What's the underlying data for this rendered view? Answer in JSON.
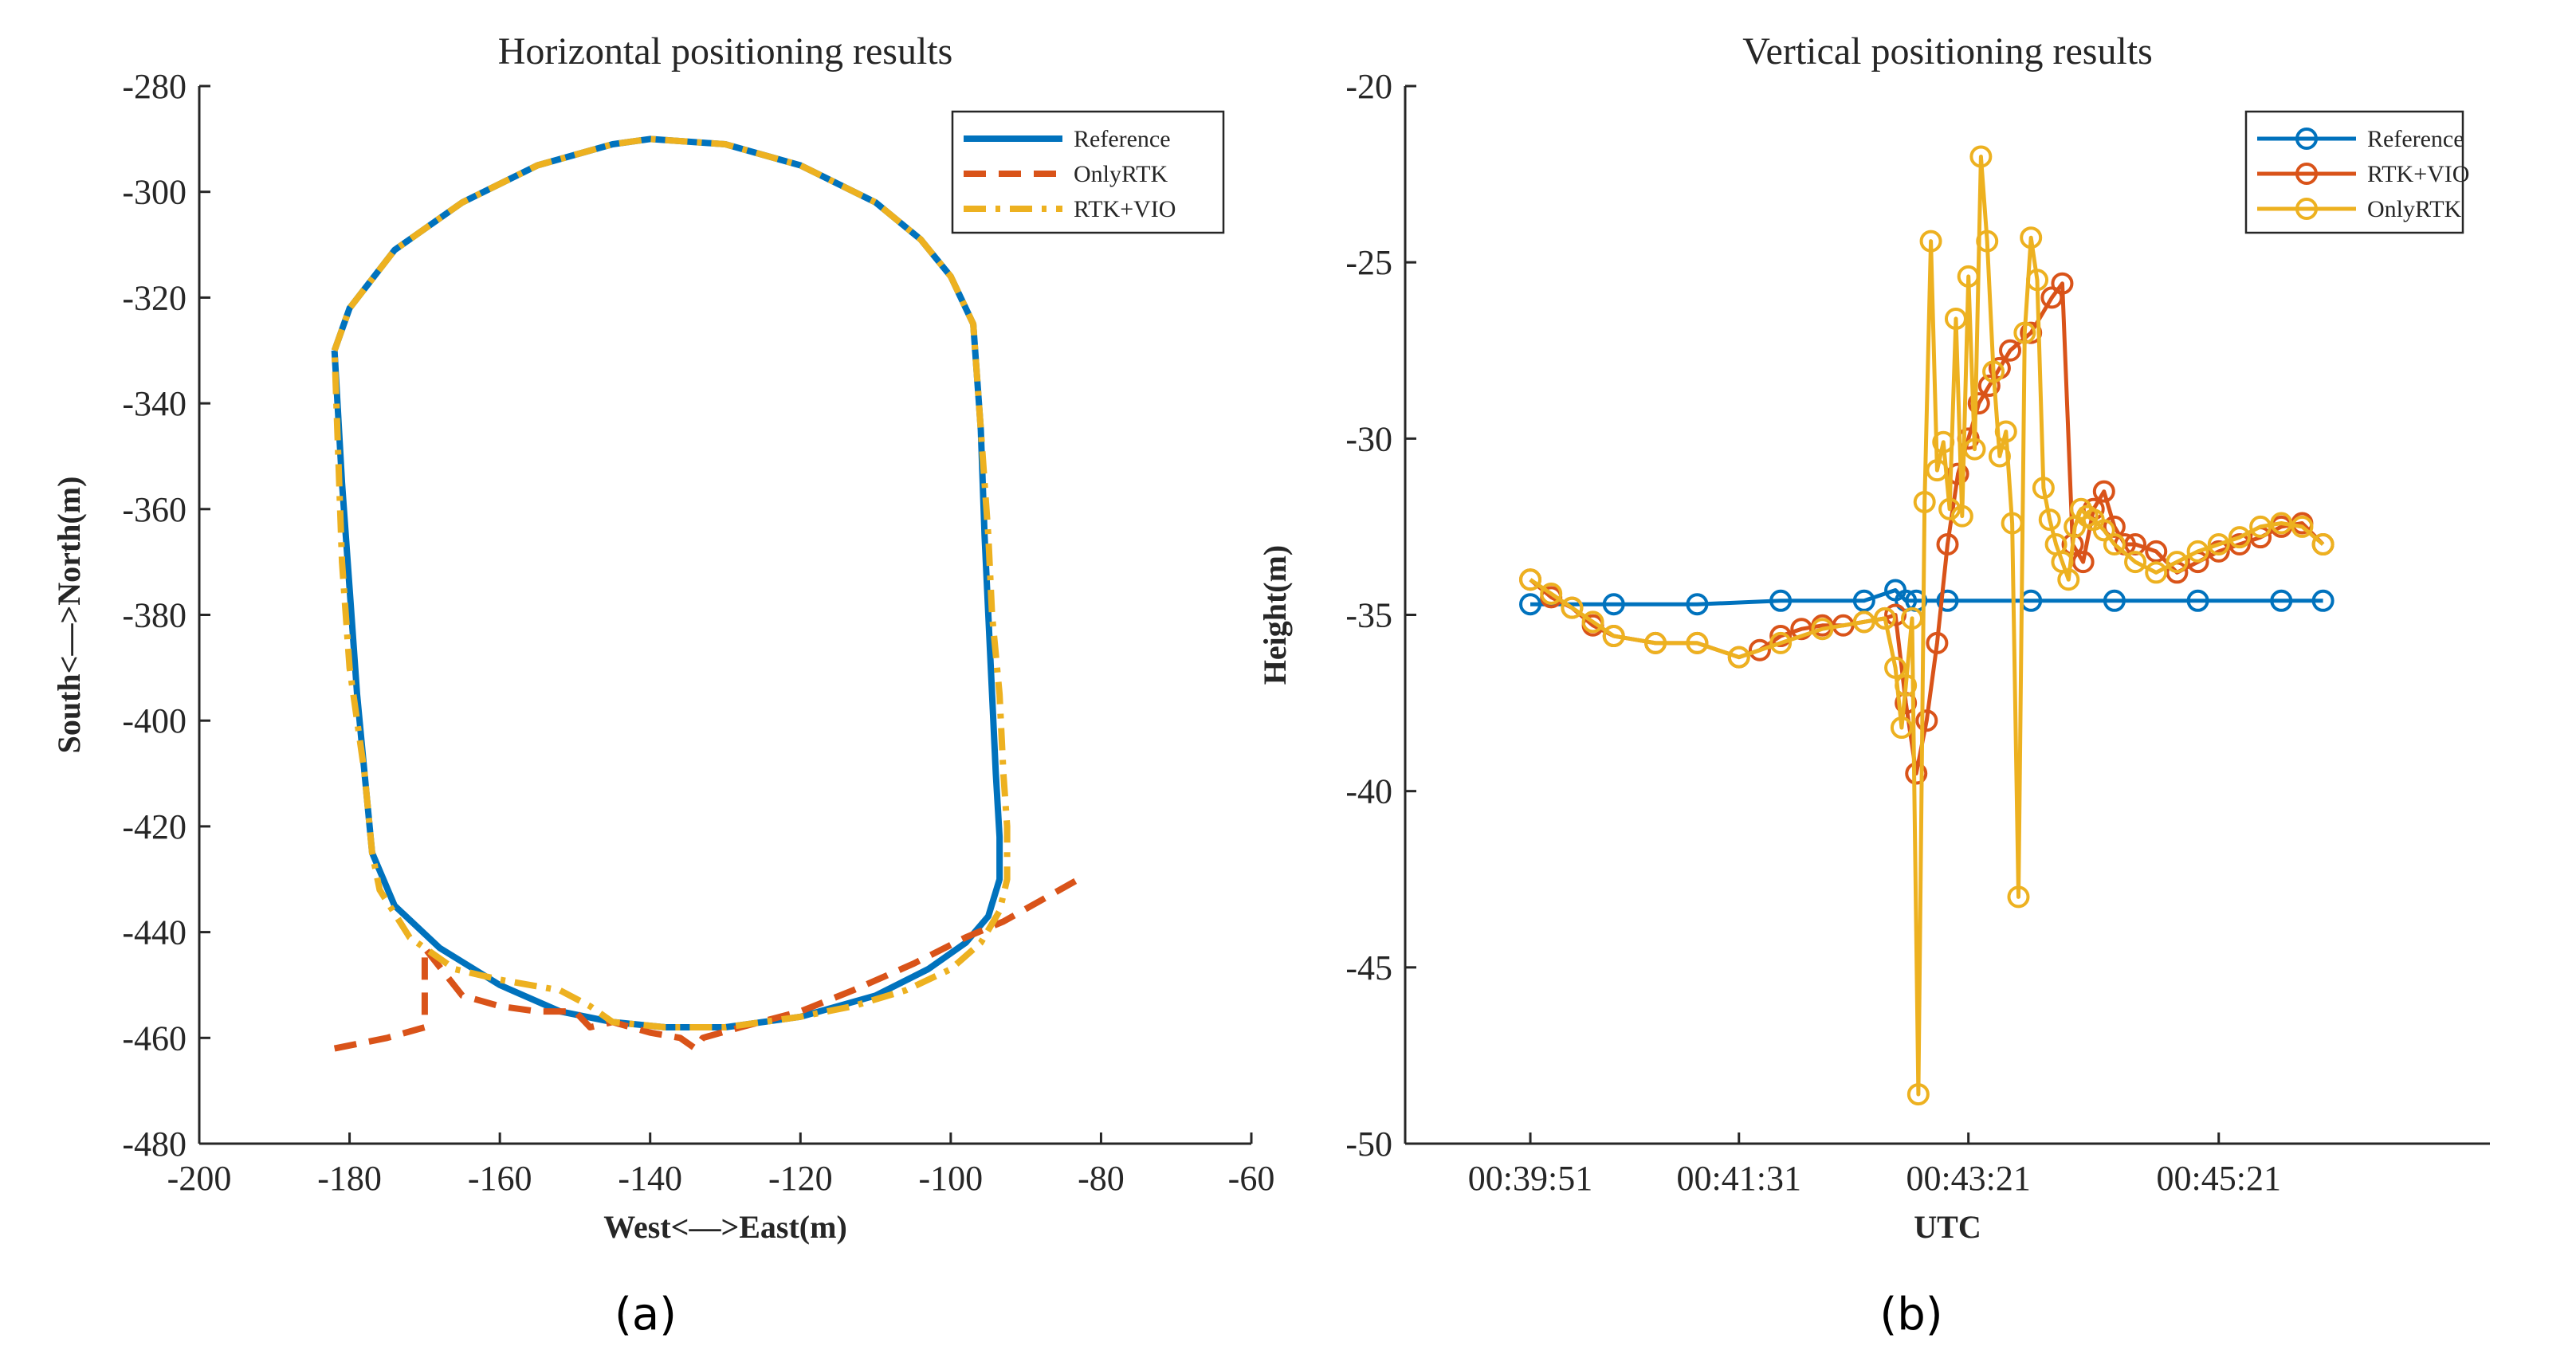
{
  "chart_data": [
    {
      "type": "line",
      "title": "Horizontal positioning results",
      "xlabel": "West<—>East(m)",
      "ylabel": "South<—>North(m)",
      "xlim": [
        -200,
        -60
      ],
      "ylim": [
        -480,
        -280
      ],
      "xticks": [
        "-200",
        "-180",
        "-160",
        "-140",
        "-120",
        "-100",
        "-80",
        "-60"
      ],
      "yticks": [
        "-280",
        "-300",
        "-320",
        "-340",
        "-360",
        "-380",
        "-400",
        "-420",
        "-440",
        "-460",
        "-480"
      ],
      "legend": {
        "position": "top-right",
        "entries": [
          "Reference",
          "OnlyRTK",
          "RTK+VIO"
        ]
      },
      "caption": "(a)",
      "series": [
        {
          "name": "Reference",
          "color": "#0072BD",
          "style": "solid",
          "x": [
            -182,
            -180,
            -174,
            -165,
            -155,
            -145,
            -140,
            -130,
            -120,
            -110,
            -104,
            -100,
            -97,
            -96,
            -95.5,
            -95,
            -94.5,
            -94,
            -93.5,
            -93.5,
            -95,
            -98,
            -103,
            -110,
            -120,
            -130,
            -138,
            -145,
            -152,
            -160,
            -168,
            -174,
            -177,
            -178,
            -179,
            -180,
            -181,
            -182
          ],
          "y": [
            -330,
            -322,
            -311,
            -302,
            -295,
            -291,
            -290,
            -291,
            -295,
            -302,
            -309,
            -316,
            -325,
            -345,
            -365,
            -380,
            -395,
            -410,
            -422,
            -430,
            -437,
            -442,
            -447,
            -452,
            -456,
            -458,
            -458,
            -457,
            -455,
            -450,
            -443,
            -435,
            -425,
            -410,
            -395,
            -375,
            -355,
            -330
          ]
        },
        {
          "name": "OnlyRTK",
          "color": "#D95319",
          "style": "dashed",
          "x": [
            -182,
            -175,
            -170,
            -170,
            -165,
            -160,
            -155,
            -150,
            -148,
            -145,
            -140,
            -136,
            -134,
            -133,
            -128,
            -120,
            -113,
            -105,
            -98,
            -93,
            -88,
            -83
          ],
          "y": [
            -462,
            -460,
            -458,
            -443,
            -452,
            -454,
            -455,
            -455,
            -458,
            -457,
            -459,
            -460,
            -462,
            -460,
            -458,
            -455,
            -451,
            -446,
            -441,
            -438,
            -434,
            -430
          ]
        },
        {
          "name": "RTK+VIO",
          "color": "#EDB120",
          "style": "dashdot",
          "x": [
            -182,
            -180,
            -174,
            -165,
            -155,
            -145,
            -140,
            -130,
            -120,
            -110,
            -104,
            -100,
            -97,
            -96,
            -95,
            -94.5,
            -93.5,
            -93,
            -92.5,
            -92.5,
            -93.5,
            -96,
            -100,
            -106,
            -113,
            -120,
            -130,
            -138,
            -145,
            -148,
            -152,
            -160,
            -166,
            -172,
            -176,
            -177,
            -178,
            -180,
            -181,
            -182
          ],
          "y": [
            -330,
            -322,
            -311,
            -302,
            -295,
            -291,
            -290,
            -291,
            -295,
            -302,
            -309,
            -316,
            -325,
            -345,
            -365,
            -380,
            -395,
            -410,
            -420,
            -430,
            -436,
            -442,
            -447,
            -451,
            -454,
            -456,
            -458,
            -458,
            -457,
            -454,
            -451,
            -449,
            -447,
            -441,
            -432,
            -425,
            -410,
            -390,
            -370,
            -330
          ]
        }
      ]
    },
    {
      "type": "line",
      "title": "Vertical positioning results",
      "xlabel": "UTC",
      "ylabel": "Height(m)",
      "xlim": [
        -60,
        460
      ],
      "ylim": [
        -50,
        -20
      ],
      "xticks": [
        {
          "value": 0,
          "label": "00:39:51"
        },
        {
          "value": 100,
          "label": "00:41:31"
        },
        {
          "value": 210,
          "label": "00:43:21"
        },
        {
          "value": 330,
          "label": "00:45:21"
        }
      ],
      "yticks": [
        "-20",
        "-25",
        "-30",
        "-35",
        "-40",
        "-45",
        "-50"
      ],
      "x_units": "seconds after 00:39:51",
      "legend": {
        "position": "top-right",
        "entries": [
          "Reference",
          "RTK+VIO",
          "OnlyRTK"
        ]
      },
      "caption": "(b)",
      "series": [
        {
          "name": "Reference",
          "color": "#0072BD",
          "marker": "circle",
          "x": [
            0,
            40,
            80,
            120,
            160,
            175,
            180,
            185,
            200,
            240,
            280,
            320,
            360,
            380
          ],
          "y": [
            -34.7,
            -34.7,
            -34.7,
            -34.6,
            -34.6,
            -34.3,
            -34.6,
            -34.6,
            -34.6,
            -34.6,
            -34.6,
            -34.6,
            -34.6,
            -34.6
          ]
        },
        {
          "name": "RTK+VIO",
          "color": "#D95319",
          "marker": "circle",
          "x": [
            0,
            10,
            20,
            30,
            40,
            60,
            80,
            100,
            110,
            120,
            130,
            140,
            150,
            160,
            170,
            175,
            180,
            185,
            190,
            195,
            200,
            205,
            210,
            215,
            220,
            225,
            230,
            240,
            250,
            255,
            260,
            265,
            270,
            275,
            280,
            285,
            290,
            300,
            310,
            320,
            330,
            340,
            350,
            360,
            370,
            380
          ],
          "y": [
            -34.0,
            -34.5,
            -34.8,
            -35.3,
            -35.6,
            -35.8,
            -35.8,
            -36.2,
            -36.0,
            -35.6,
            -35.4,
            -35.3,
            -35.3,
            -35.2,
            -35.1,
            -35.0,
            -37.5,
            -39.5,
            -38.0,
            -35.8,
            -33.0,
            -31.0,
            -30.0,
            -29.0,
            -28.5,
            -28.0,
            -27.5,
            -27.0,
            -26.0,
            -25.6,
            -33.0,
            -33.5,
            -32.0,
            -31.5,
            -32.5,
            -33.0,
            -33.0,
            -33.2,
            -33.8,
            -33.5,
            -33.2,
            -33.0,
            -32.8,
            -32.5,
            -32.4,
            -33.0
          ]
        },
        {
          "name": "OnlyRTK",
          "color": "#EDB120",
          "marker": "circle",
          "x": [
            0,
            10,
            20,
            30,
            40,
            60,
            80,
            100,
            120,
            140,
            160,
            170,
            175,
            178,
            180,
            183,
            186,
            189,
            192,
            195,
            198,
            201,
            204,
            207,
            210,
            213,
            216,
            219,
            222,
            225,
            228,
            231,
            234,
            237,
            240,
            243,
            246,
            249,
            252,
            255,
            258,
            261,
            264,
            267,
            270,
            275,
            280,
            290,
            300,
            310,
            320,
            330,
            340,
            350,
            360,
            370,
            380
          ],
          "y": [
            -34.0,
            -34.4,
            -34.8,
            -35.2,
            -35.6,
            -35.8,
            -35.8,
            -36.2,
            -35.8,
            -35.4,
            -35.2,
            -35.1,
            -36.5,
            -38.2,
            -37.0,
            -35.1,
            -48.6,
            -31.8,
            -24.4,
            -30.9,
            -30.1,
            -32.0,
            -26.6,
            -32.2,
            -25.4,
            -30.3,
            -22.0,
            -24.4,
            -28.1,
            -30.5,
            -29.8,
            -32.4,
            -43.0,
            -27.0,
            -24.3,
            -25.5,
            -31.4,
            -32.3,
            -33.0,
            -33.5,
            -34.0,
            -32.5,
            -32.0,
            -32.2,
            -32.3,
            -32.6,
            -33.0,
            -33.5,
            -33.8,
            -33.5,
            -33.2,
            -33.0,
            -32.8,
            -32.5,
            -32.4,
            -32.5,
            -33.0
          ]
        }
      ]
    }
  ]
}
